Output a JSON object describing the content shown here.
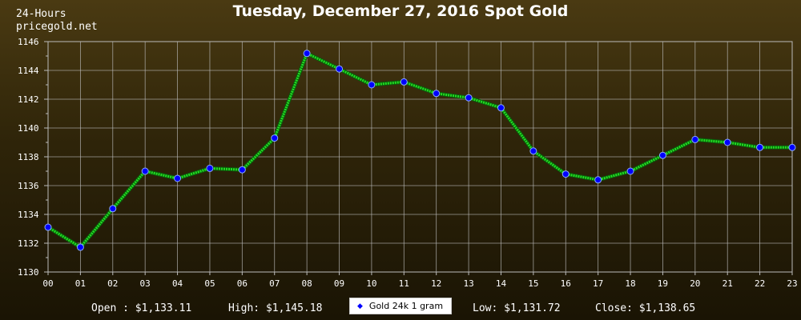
{
  "header": {
    "period": "24-Hours",
    "site": "pricegold.net",
    "title": "Tuesday, December 27, 2016 Spot Gold"
  },
  "stats": {
    "open": "Open : $1,133.11",
    "high": "High: $1,145.18",
    "low": "Low: $1,131.72",
    "close": "Close: $1,138.65"
  },
  "legend": {
    "label": "Gold 24k 1 gram"
  },
  "colors": {
    "line": "#22dd22",
    "marker_fill": "#0000ff",
    "grid": "#bbbbbb",
    "text": "#ffffff"
  },
  "chart_data": {
    "type": "line",
    "title": "Tuesday, December 27, 2016 Spot Gold",
    "x": [
      "00",
      "01",
      "02",
      "03",
      "04",
      "05",
      "06",
      "07",
      "08",
      "09",
      "10",
      "11",
      "12",
      "13",
      "14",
      "15",
      "16",
      "17",
      "18",
      "19",
      "20",
      "21",
      "22",
      "23"
    ],
    "series": [
      {
        "name": "Gold 24k 1 gram",
        "values": [
          1133.11,
          1131.72,
          1134.4,
          1137.0,
          1136.5,
          1137.2,
          1137.1,
          1139.3,
          1145.18,
          1144.1,
          1143.0,
          1143.2,
          1142.4,
          1142.1,
          1141.4,
          1138.4,
          1136.8,
          1136.4,
          1137.0,
          1138.1,
          1139.2,
          1139.0,
          1138.65,
          1138.65
        ]
      }
    ],
    "ylim": [
      1130,
      1146
    ],
    "yticks": [
      1130,
      1132,
      1134,
      1136,
      1138,
      1140,
      1142,
      1144,
      1146
    ],
    "grid": true,
    "legend_position": "bottom-center"
  }
}
